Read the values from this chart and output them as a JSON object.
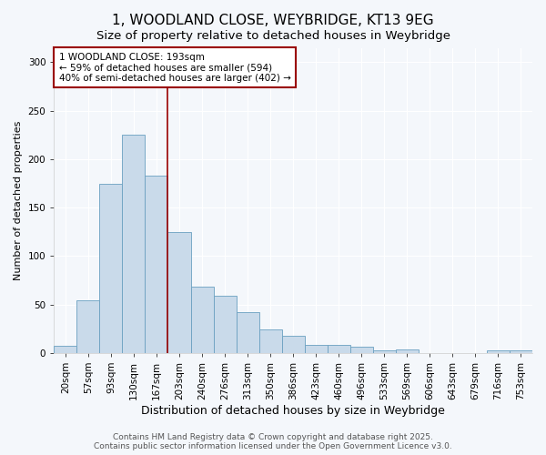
{
  "title": "1, WOODLAND CLOSE, WEYBRIDGE, KT13 9EG",
  "subtitle": "Size of property relative to detached houses in Weybridge",
  "xlabel": "Distribution of detached houses by size in Weybridge",
  "ylabel": "Number of detached properties",
  "bar_labels": [
    "20sqm",
    "57sqm",
    "93sqm",
    "130sqm",
    "167sqm",
    "203sqm",
    "240sqm",
    "276sqm",
    "313sqm",
    "350sqm",
    "386sqm",
    "423sqm",
    "460sqm",
    "496sqm",
    "533sqm",
    "569sqm",
    "606sqm",
    "643sqm",
    "679sqm",
    "716sqm",
    "753sqm"
  ],
  "bar_values": [
    7,
    54,
    175,
    225,
    183,
    125,
    68,
    59,
    42,
    24,
    18,
    8,
    8,
    6,
    3,
    4,
    0,
    0,
    0,
    3,
    3
  ],
  "bar_color": "#c9daea",
  "bar_edgecolor": "#6aa0c0",
  "vline_color": "#990000",
  "vline_x_index": 4.5,
  "annotation_text": "1 WOODLAND CLOSE: 193sqm\n← 59% of detached houses are smaller (594)\n40% of semi-detached houses are larger (402) →",
  "annotation_box_facecolor": "white",
  "annotation_box_edgecolor": "#990000",
  "ylim": [
    0,
    315
  ],
  "yticks": [
    0,
    50,
    100,
    150,
    200,
    250,
    300
  ],
  "footer_text": "Contains HM Land Registry data © Crown copyright and database right 2025.\nContains public sector information licensed under the Open Government Licence v3.0.",
  "fig_facecolor": "#f4f7fb",
  "axes_facecolor": "#f4f7fb",
  "grid_color": "#ffffff",
  "title_fontsize": 11,
  "subtitle_fontsize": 9.5,
  "xlabel_fontsize": 9,
  "ylabel_fontsize": 8,
  "tick_fontsize": 7.5,
  "annotation_fontsize": 7.5,
  "footer_fontsize": 6.5
}
